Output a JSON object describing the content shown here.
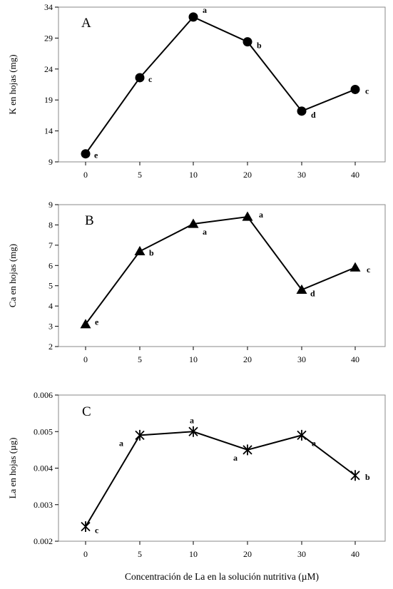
{
  "xlabel": "Concentración de La en la solución nutritiva (µM)",
  "chart_data": [
    {
      "type": "line",
      "panel": "A",
      "ylabel": "K en hojas (mg)",
      "ylim": [
        9,
        34
      ],
      "yticks": [
        "9",
        "14",
        "19",
        "24",
        "29",
        "34"
      ],
      "categories": [
        "0",
        "5",
        "10",
        "20",
        "30",
        "40"
      ],
      "values": [
        10.3,
        22.6,
        32.4,
        28.4,
        17.2,
        20.7
      ],
      "letters": [
        "e",
        "c",
        "a",
        "b",
        "d",
        "c"
      ],
      "marker": "circle"
    },
    {
      "type": "line",
      "panel": "B",
      "ylabel": "Ca en hojas (mg)",
      "ylim": [
        2,
        9
      ],
      "yticks": [
        "2",
        "3",
        "4",
        "5",
        "6",
        "7",
        "8",
        "9"
      ],
      "categories": [
        "0",
        "5",
        "10",
        "20",
        "30",
        "40"
      ],
      "values": [
        3.1,
        6.7,
        8.05,
        8.4,
        4.8,
        5.9
      ],
      "letters": [
        "e",
        "b",
        "a",
        "a",
        "d",
        "c"
      ],
      "marker": "triangle"
    },
    {
      "type": "line",
      "panel": "C",
      "ylabel": "La en hojas   (µg)",
      "ylim": [
        0.002,
        0.006
      ],
      "yticks": [
        "0.002",
        "0.003",
        "0.004",
        "0.005",
        "0.006"
      ],
      "categories": [
        "0",
        "5",
        "10",
        "20",
        "30",
        "40"
      ],
      "values": [
        0.0024,
        0.0049,
        0.005,
        0.0045,
        0.0049,
        0.0038
      ],
      "letters": [
        "c",
        "a",
        "a",
        "a",
        "a",
        "b"
      ],
      "marker": "star"
    }
  ]
}
